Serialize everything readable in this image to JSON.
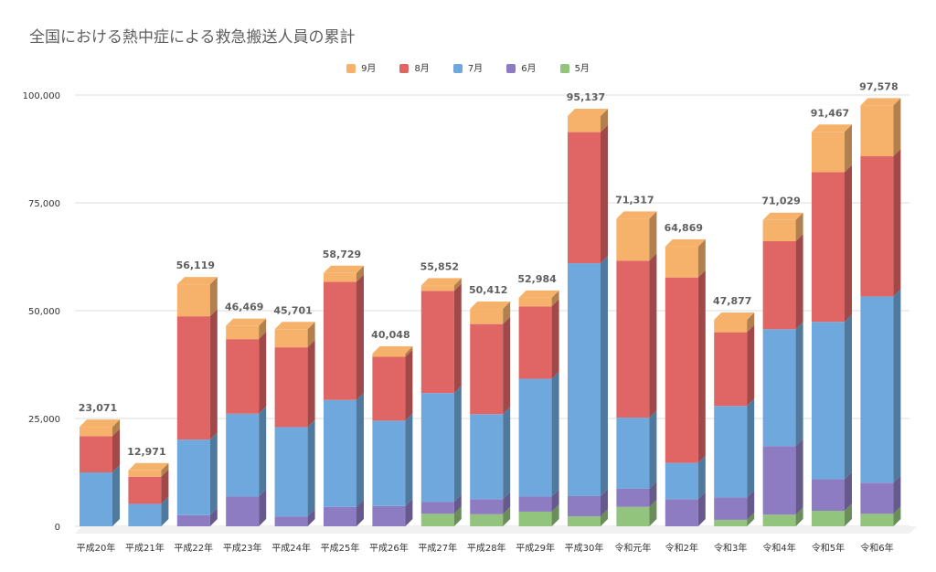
{
  "chart_data": {
    "type": "bar",
    "stacked": true,
    "title": "全国における熱中症による救急搬送人員の累計",
    "xlabel": "",
    "ylabel": "",
    "ylim": [
      0,
      100000
    ],
    "yticks": [
      0,
      25000,
      50000,
      75000,
      100000
    ],
    "ytick_labels": [
      "0",
      "25,000",
      "50,000",
      "75,000",
      "100,000"
    ],
    "categories": [
      "平成20年",
      "平成21年",
      "平成22年",
      "平成23年",
      "平成24年",
      "平成25年",
      "平成26年",
      "平成27年",
      "平成28年",
      "平成29年",
      "平成30年",
      "令和元年",
      "令和2年",
      "令和3年",
      "令和4年",
      "令和5年",
      "令和6年"
    ],
    "legend_position": "top",
    "series": [
      {
        "name": "5月",
        "color": "#93c47d",
        "values": [
          0,
          0,
          0,
          0,
          0,
          0,
          0,
          2900,
          2800,
          3400,
          2300,
          4500,
          0,
          1500,
          2700,
          3600,
          2900
        ]
      },
      {
        "name": "6月",
        "color": "#8e7cc3",
        "values": [
          0,
          0,
          2600,
          6900,
          2300,
          4500,
          4700,
          2800,
          3500,
          3500,
          4700,
          4200,
          6300,
          5200,
          15900,
          7300,
          7200
        ]
      },
      {
        "name": "7月",
        "color": "#6fa8dc",
        "values": [
          12500,
          5200,
          17500,
          19200,
          20700,
          24800,
          19800,
          25200,
          19700,
          27300,
          54000,
          16500,
          8400,
          21200,
          27100,
          36500,
          43200
        ]
      },
      {
        "name": "8月",
        "color": "#e06666",
        "values": [
          8400,
          6300,
          28600,
          17300,
          18500,
          27400,
          14800,
          23700,
          20900,
          16800,
          30400,
          36400,
          43000,
          17100,
          20400,
          34700,
          32500
        ]
      },
      {
        "name": "9月",
        "color": "#f6b26b",
        "values": [
          2171,
          1471,
          7419,
          3069,
          4201,
          2029,
          748,
          1252,
          3512,
          1984,
          3737,
          9717,
          7169,
          2877,
          4929,
          9367,
          11778
        ]
      }
    ],
    "totals": [
      23071,
      12971,
      56119,
      46469,
      45701,
      58729,
      40048,
      55852,
      50412,
      52984,
      95137,
      71317,
      64869,
      47877,
      71029,
      91467,
      97578
    ],
    "total_labels": [
      "23,071",
      "12,971",
      "56,119",
      "46,469",
      "45,701",
      "58,729",
      "40,048",
      "55,852",
      "50,412",
      "52,984",
      "95,137",
      "71,317",
      "64,869",
      "47,877",
      "71,029",
      "91,467",
      "97,578"
    ],
    "legend_order": [
      "9月",
      "8月",
      "7月",
      "6月",
      "5月"
    ]
  }
}
